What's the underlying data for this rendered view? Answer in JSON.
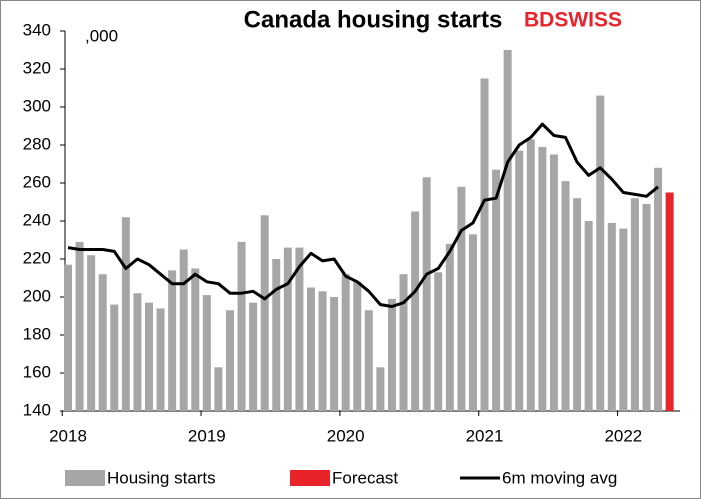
{
  "chart_data": {
    "type": "bar_line",
    "title": "Canada housing starts",
    "logo": "BDSWISS",
    "annotation": ",000",
    "categories": [
      "2018",
      null,
      null,
      null,
      null,
      null,
      null,
      null,
      null,
      null,
      null,
      null,
      "2019",
      null,
      null,
      null,
      null,
      null,
      null,
      null,
      null,
      null,
      null,
      null,
      "2020",
      null,
      null,
      null,
      null,
      null,
      null,
      null,
      null,
      null,
      null,
      null,
      "2021",
      null,
      null,
      null,
      null,
      null,
      null,
      null,
      null,
      null,
      null,
      null,
      "2022",
      null,
      null,
      null,
      null
    ],
    "series": [
      {
        "name": "Housing starts",
        "kind": "bar",
        "color": "#a6a6a6",
        "values": [
          217,
          229,
          222,
          212,
          196,
          242,
          202,
          197,
          194,
          214,
          225,
          215,
          201,
          163,
          193,
          229,
          197,
          243,
          220,
          226,
          226,
          205,
          203,
          200,
          212,
          208,
          193,
          163,
          199,
          212,
          245,
          263,
          213,
          228,
          258,
          233,
          315,
          267,
          330,
          277,
          283,
          279,
          275,
          261,
          252,
          240,
          306,
          239,
          236,
          252,
          249,
          268,
          null
        ]
      },
      {
        "name": "Forecast",
        "kind": "bar",
        "color": "#e8232a",
        "values": [
          null,
          null,
          null,
          null,
          null,
          null,
          null,
          null,
          null,
          null,
          null,
          null,
          null,
          null,
          null,
          null,
          null,
          null,
          null,
          null,
          null,
          null,
          null,
          null,
          null,
          null,
          null,
          null,
          null,
          null,
          null,
          null,
          null,
          null,
          null,
          null,
          null,
          null,
          null,
          null,
          null,
          null,
          null,
          null,
          null,
          null,
          null,
          null,
          null,
          null,
          null,
          null,
          255
        ]
      },
      {
        "name": "6m moving avg",
        "kind": "line",
        "color": "#000000",
        "values": [
          226,
          225,
          225,
          225,
          224,
          215,
          220,
          217,
          212,
          207,
          207,
          212,
          208,
          207,
          202,
          202,
          203,
          199,
          204,
          207,
          216,
          223,
          219,
          220,
          211,
          208,
          203,
          196,
          195,
          197,
          203,
          212,
          215,
          224,
          235,
          239,
          251,
          252,
          271,
          280,
          284,
          291,
          285,
          284,
          271,
          264,
          268,
          262,
          255,
          254,
          253,
          258,
          null
        ]
      }
    ],
    "ylim": [
      140,
      340
    ],
    "yticks": [
      140,
      160,
      180,
      200,
      220,
      240,
      260,
      280,
      300,
      320,
      340
    ],
    "grid": false,
    "legend": "bottom"
  }
}
